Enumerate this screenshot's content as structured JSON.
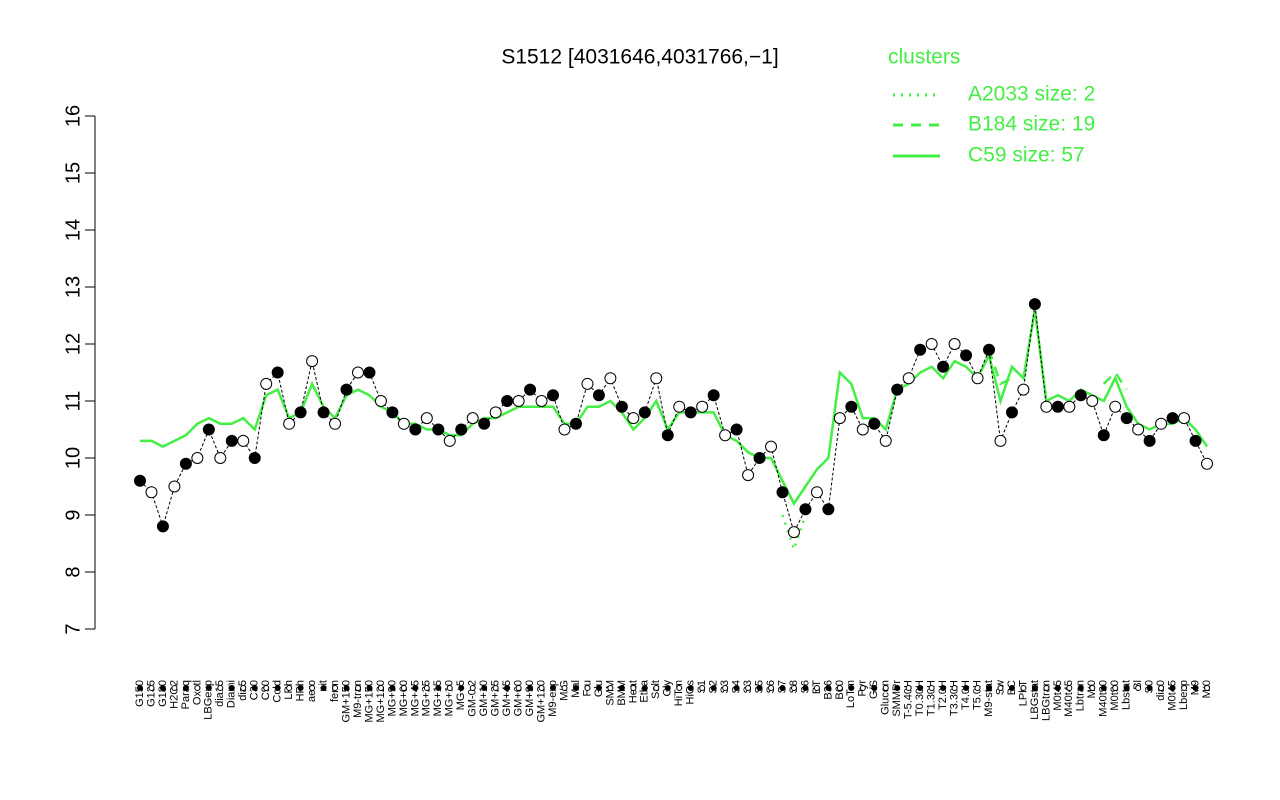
{
  "chart_data": {
    "type": "line",
    "title": "S1512 [4031646,4031766,−1]",
    "legend_title": "clusters",
    "categories": [
      "G150",
      "G135",
      "G180",
      "H2O2",
      "Paraq",
      "Oxctl",
      "LBGexp",
      "dia15",
      "Diami",
      "dia5",
      "C30",
      "C90",
      "Cold",
      "LPh",
      "HPh",
      "aero",
      "nit",
      "ferm",
      "GM+150",
      "M9-tran",
      "MG+150",
      "MG+120",
      "MG+90",
      "MG+60",
      "MG+45",
      "MG+25",
      "MG+15",
      "MG+10",
      "MG+5",
      "GM-0.2",
      "GM+10",
      "GM+25",
      "GM+45",
      "GM+60",
      "GM+90",
      "GM+120",
      "M9-exp",
      "M/G",
      "Mal",
      "Fru",
      "Glu",
      "SMM",
      "BMM",
      "Heat",
      "Etha",
      "Salt",
      "Gly",
      "HiTm",
      "HiOs",
      "S1",
      "S2",
      "S3",
      "S4",
      "S3",
      "S5",
      "S6",
      "S7",
      "S8",
      "S6",
      "BT",
      "B36",
      "B60",
      "LoTm",
      "Pyr",
      "G/S",
      "Glucon",
      "SMMPr",
      "T-5.40H",
      "T0.30H",
      "T1.30H",
      "T2.0H",
      "T3.30H",
      "T4.0H",
      "T5.0H",
      "M9-stat",
      "Sw",
      "BC",
      "LPhT",
      "LBGstat",
      "LBGtran",
      "M0t45",
      "M40t45",
      "Lbtran",
      "Mt0",
      "M40t90",
      "M0t90",
      "Lbstat",
      "Bl",
      "S0",
      "dia0",
      "M0t45",
      "Lbexp",
      "M9",
      "Mt0"
    ],
    "values": [
      9.6,
      9.4,
      8.8,
      9.5,
      9.9,
      10.0,
      10.5,
      10.0,
      10.3,
      10.3,
      10.0,
      11.3,
      11.5,
      10.6,
      10.8,
      11.7,
      10.8,
      10.6,
      11.2,
      11.5,
      11.5,
      11.0,
      10.8,
      10.6,
      10.5,
      10.7,
      10.5,
      10.3,
      10.5,
      10.7,
      10.6,
      10.8,
      11.0,
      11.0,
      11.2,
      11.0,
      11.1,
      10.5,
      10.6,
      11.3,
      11.1,
      11.4,
      10.9,
      10.7,
      10.8,
      11.4,
      10.4,
      10.9,
      10.8,
      10.9,
      11.1,
      10.4,
      10.5,
      9.7,
      10.0,
      10.2,
      9.4,
      8.7,
      9.1,
      9.4,
      9.1,
      10.7,
      10.9,
      10.5,
      10.6,
      10.3,
      11.2,
      11.4,
      11.9,
      12.0,
      11.6,
      12.0,
      11.8,
      11.4,
      11.9,
      10.3,
      10.8,
      11.2,
      12.7,
      10.9,
      10.9,
      10.9,
      11.1,
      11.0,
      10.4,
      10.9,
      10.7,
      10.5,
      10.3,
      10.6,
      10.7,
      10.7,
      10.3,
      9.9
    ],
    "series": [
      {
        "name": "A2033 size: 2",
        "color": "#44ee44",
        "style": "dotted",
        "values": [
          null,
          null,
          null,
          null,
          null,
          null,
          null,
          null,
          null,
          null,
          null,
          null,
          null,
          null,
          null,
          null,
          null,
          null,
          null,
          null,
          null,
          null,
          null,
          null,
          null,
          null,
          null,
          null,
          null,
          null,
          null,
          null,
          null,
          null,
          null,
          null,
          null,
          null,
          null,
          null,
          null,
          null,
          null,
          null,
          null,
          null,
          null,
          null,
          null,
          null,
          null,
          null,
          null,
          null,
          null,
          null,
          9.0,
          8.4,
          9.0,
          null,
          null,
          null,
          null,
          null,
          null,
          null,
          null,
          null,
          null,
          null,
          null,
          null,
          null,
          null,
          null,
          null,
          null,
          null,
          null,
          null,
          null,
          null,
          null,
          null,
          null,
          null,
          null,
          null,
          null,
          null,
          null,
          null,
          null,
          null
        ]
      },
      {
        "name": "B184 size: 19",
        "color": "#44ee44",
        "style": "dashed",
        "values": [
          null,
          null,
          null,
          null,
          null,
          null,
          null,
          null,
          null,
          null,
          null,
          null,
          null,
          null,
          null,
          null,
          null,
          null,
          null,
          null,
          null,
          null,
          null,
          null,
          null,
          null,
          null,
          null,
          null,
          null,
          null,
          null,
          null,
          null,
          null,
          null,
          null,
          null,
          null,
          null,
          null,
          null,
          null,
          null,
          null,
          null,
          null,
          null,
          null,
          null,
          null,
          null,
          null,
          null,
          null,
          null,
          null,
          null,
          null,
          null,
          null,
          null,
          null,
          null,
          null,
          null,
          null,
          null,
          null,
          null,
          null,
          null,
          null,
          null,
          11.9,
          11.3,
          11.4,
          null,
          null,
          null,
          null,
          null,
          null,
          null,
          11.3,
          11.5,
          11.2,
          null,
          null,
          null,
          null,
          null,
          null,
          null
        ]
      },
      {
        "name": "C59 size: 57",
        "color": "#44ee44",
        "style": "solid",
        "values": [
          10.3,
          10.3,
          10.2,
          10.3,
          10.4,
          10.6,
          10.7,
          10.6,
          10.6,
          10.7,
          10.5,
          11.1,
          11.2,
          10.7,
          10.8,
          11.3,
          10.9,
          10.7,
          11.1,
          11.2,
          11.1,
          10.9,
          10.8,
          10.6,
          10.6,
          10.5,
          10.5,
          10.4,
          10.4,
          10.6,
          10.7,
          10.7,
          10.8,
          10.9,
          10.9,
          10.9,
          10.9,
          10.6,
          10.6,
          10.9,
          10.9,
          11.0,
          10.8,
          10.5,
          10.7,
          11.0,
          10.5,
          10.8,
          10.8,
          10.8,
          10.8,
          10.4,
          10.3,
          10.1,
          10.0,
          10.0,
          9.6,
          9.2,
          9.5,
          9.8,
          10.0,
          11.5,
          11.3,
          10.7,
          10.7,
          10.5,
          11.2,
          11.3,
          11.5,
          11.6,
          11.4,
          11.7,
          11.6,
          11.4,
          11.8,
          11.0,
          11.6,
          11.4,
          12.6,
          11.0,
          11.1,
          11.0,
          11.2,
          11.1,
          11.0,
          11.4,
          10.9,
          10.6,
          10.5,
          10.6,
          10.6,
          10.7,
          10.5,
          10.2
        ]
      }
    ],
    "ylim": [
      7,
      16
    ],
    "yticks": [
      7,
      8,
      9,
      10,
      11,
      12,
      13,
      14,
      15,
      16
    ]
  }
}
